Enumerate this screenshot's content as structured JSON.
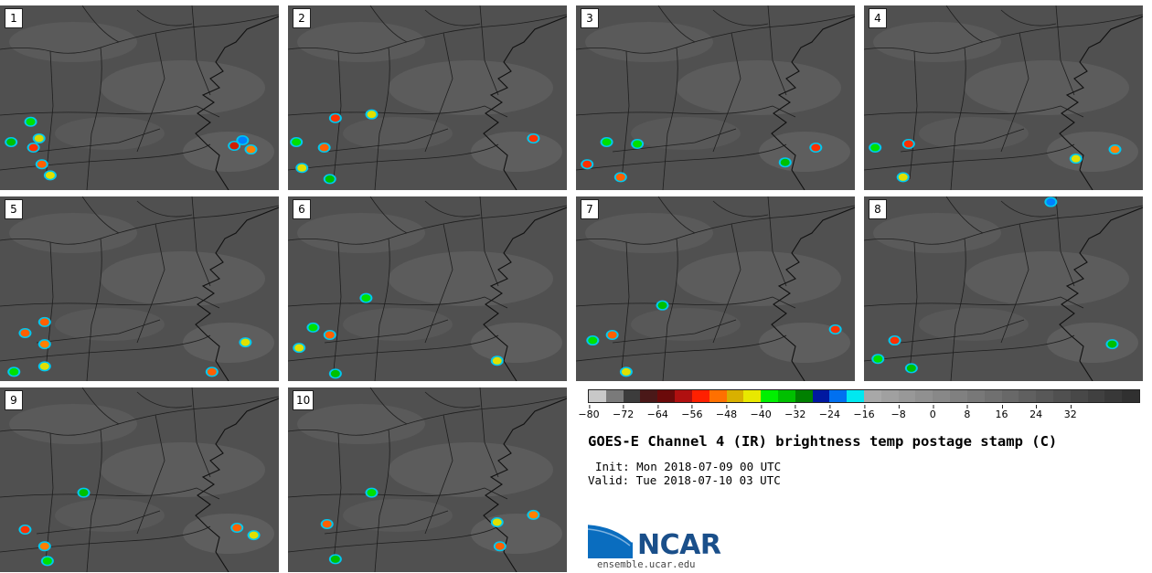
{
  "figure": {
    "title": "GOES-E Channel 4 (IR) brightness temp postage stamp (C)",
    "init_line": "Init: Mon 2018-07-09 00 UTC",
    "valid_line": "Valid: Tue 2018-07-10 03 UTC",
    "logo_text": "NCAR",
    "website": "ensemble.ucar.edu"
  },
  "stamps": [
    {
      "label": "1",
      "cells": [
        [
          0.11,
          0.63,
          "#00e000"
        ],
        [
          0.14,
          0.72,
          "#d8d800"
        ],
        [
          0.12,
          0.77,
          "#ff3000"
        ],
        [
          0.15,
          0.86,
          "#ff6000"
        ],
        [
          0.18,
          0.92,
          "#e0e000"
        ],
        [
          0.04,
          0.74,
          "#00c000"
        ],
        [
          0.84,
          0.76,
          "#d02000"
        ],
        [
          0.9,
          0.78,
          "#ff8000"
        ],
        [
          0.87,
          0.73,
          "#0080ff"
        ]
      ]
    },
    {
      "label": "2",
      "cells": [
        [
          0.03,
          0.74,
          "#00e000"
        ],
        [
          0.13,
          0.77,
          "#ff6000"
        ],
        [
          0.17,
          0.61,
          "#ff3000"
        ],
        [
          0.3,
          0.59,
          "#e0e000"
        ],
        [
          0.05,
          0.88,
          "#e0e000"
        ],
        [
          0.15,
          0.94,
          "#00c000"
        ],
        [
          0.88,
          0.72,
          "#ff3000"
        ]
      ]
    },
    {
      "label": "3",
      "cells": [
        [
          0.11,
          0.74,
          "#00e000"
        ],
        [
          0.04,
          0.86,
          "#ff3000"
        ],
        [
          0.16,
          0.93,
          "#ff6000"
        ],
        [
          0.22,
          0.75,
          "#00e000"
        ],
        [
          0.75,
          0.85,
          "#00c000"
        ],
        [
          0.86,
          0.77,
          "#ff3000"
        ]
      ]
    },
    {
      "label": "4",
      "cells": [
        [
          0.04,
          0.77,
          "#00e000"
        ],
        [
          0.16,
          0.75,
          "#ff3000"
        ],
        [
          0.14,
          0.93,
          "#e0e000"
        ],
        [
          0.76,
          0.83,
          "#e0e000"
        ],
        [
          0.9,
          0.78,
          "#ff8000"
        ]
      ]
    },
    {
      "label": "5",
      "cells": [
        [
          0.16,
          0.68,
          "#ff6000"
        ],
        [
          0.09,
          0.74,
          "#ff6000"
        ],
        [
          0.16,
          0.8,
          "#ff8000"
        ],
        [
          0.05,
          0.95,
          "#00e000"
        ],
        [
          0.16,
          0.92,
          "#e0e000"
        ],
        [
          0.76,
          0.95,
          "#ff6000"
        ],
        [
          0.88,
          0.79,
          "#e0e000"
        ]
      ]
    },
    {
      "label": "6",
      "cells": [
        [
          0.09,
          0.71,
          "#00e000"
        ],
        [
          0.15,
          0.75,
          "#ff6000"
        ],
        [
          0.04,
          0.82,
          "#e0e000"
        ],
        [
          0.17,
          0.96,
          "#00c000"
        ],
        [
          0.28,
          0.55,
          "#00e000"
        ],
        [
          0.75,
          0.89,
          "#e0e000"
        ]
      ]
    },
    {
      "label": "7",
      "cells": [
        [
          0.13,
          0.75,
          "#ff6000"
        ],
        [
          0.18,
          0.95,
          "#e0e000"
        ],
        [
          0.31,
          0.59,
          "#00c000"
        ],
        [
          0.06,
          0.78,
          "#00e000"
        ],
        [
          0.93,
          0.72,
          "#ff3000"
        ]
      ]
    },
    {
      "label": "8",
      "cells": [
        [
          0.11,
          0.78,
          "#ff3000"
        ],
        [
          0.05,
          0.88,
          "#00e000"
        ],
        [
          0.17,
          0.93,
          "#00c000"
        ],
        [
          0.89,
          0.8,
          "#00c000"
        ],
        [
          0.67,
          0.03,
          "#0080ff"
        ]
      ]
    },
    {
      "label": "9",
      "cells": [
        [
          0.09,
          0.77,
          "#ff3000"
        ],
        [
          0.16,
          0.86,
          "#ff8000"
        ],
        [
          0.17,
          0.94,
          "#00e000"
        ],
        [
          0.85,
          0.76,
          "#ff6000"
        ],
        [
          0.91,
          0.8,
          "#e0e000"
        ],
        [
          0.3,
          0.57,
          "#00c000"
        ]
      ]
    },
    {
      "label": "10",
      "cells": [
        [
          0.3,
          0.57,
          "#00e000"
        ],
        [
          0.14,
          0.74,
          "#ff6000"
        ],
        [
          0.17,
          0.93,
          "#00c000"
        ],
        [
          0.75,
          0.73,
          "#e0e000"
        ],
        [
          0.88,
          0.69,
          "#ff8000"
        ],
        [
          0.76,
          0.86,
          "#ff6000"
        ]
      ]
    }
  ],
  "colorbar": {
    "colors": [
      "#c8c8c8",
      "#7a7a7a",
      "#3c3c3c",
      "#4a1818",
      "#6b0a0a",
      "#b01010",
      "#ff2000",
      "#ff7000",
      "#d8b000",
      "#e8e800",
      "#00f000",
      "#00c000",
      "#008000",
      "#0018a0",
      "#0070f0",
      "#00e8f0",
      "#a8a8a8",
      "#a0a0a0",
      "#989898",
      "#909090",
      "#888888",
      "#808080",
      "#787878",
      "#707070",
      "#686868",
      "#606060",
      "#585858",
      "#505050",
      "#484848",
      "#404040",
      "#383838",
      "#303030"
    ],
    "ticks": [
      "−80",
      "−72",
      "−64",
      "−56",
      "−48",
      "−40",
      "−32",
      "−24",
      "−16",
      "−8",
      "0",
      "8",
      "16",
      "24",
      "32"
    ]
  }
}
